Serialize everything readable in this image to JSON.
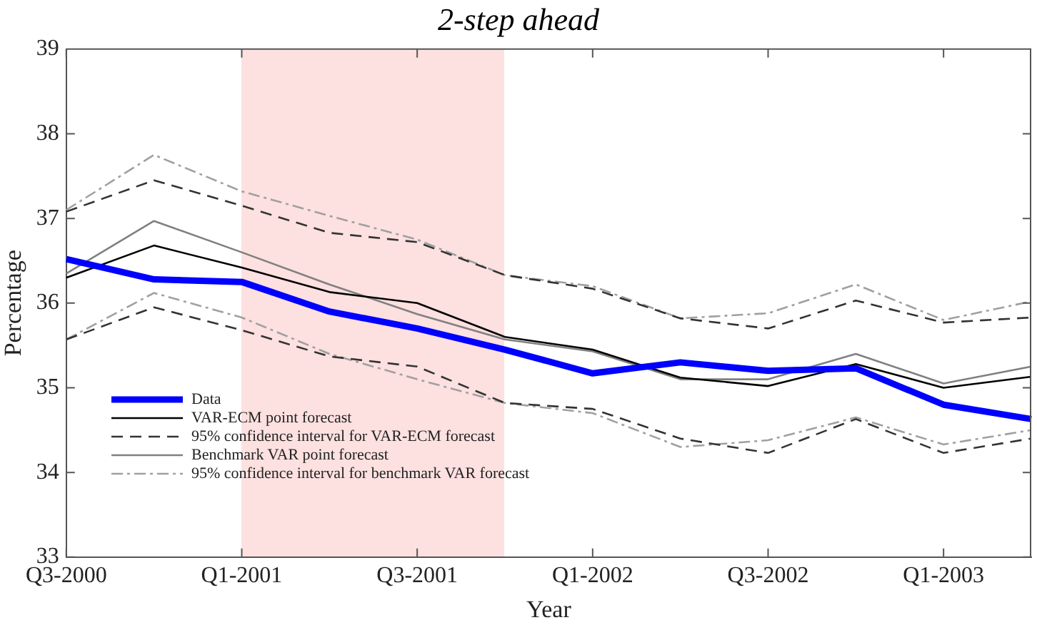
{
  "chart_data": {
    "type": "line",
    "title": "2-step ahead",
    "xlabel": "Year",
    "ylabel": "Percentage",
    "categories": [
      "Q3-2000",
      null,
      "Q1-2001",
      null,
      "Q3-2001",
      null,
      "Q1-2002",
      null,
      "Q3-2002",
      null,
      "Q1-2003",
      null
    ],
    "ylim": [
      33,
      39
    ],
    "yticks": [
      33,
      34,
      35,
      36,
      37,
      38,
      39
    ],
    "grid": false,
    "legend": "bottom left",
    "series": [
      {
        "name": "Data",
        "color": "#0000ff",
        "line_style": "solid",
        "values": [
          36.52,
          36.28,
          36.25,
          35.9,
          35.7,
          35.45,
          35.17,
          35.3,
          35.2,
          35.23,
          34.8,
          34.63
        ]
      },
      {
        "name": "VAR-ECM point forecast",
        "color": "#000000",
        "line_style": "solid",
        "values": [
          36.3,
          36.68,
          36.42,
          36.13,
          36.0,
          35.6,
          35.45,
          35.12,
          35.02,
          35.28,
          35.0,
          35.13
        ]
      },
      {
        "name": "95% confidence interval for VAR-ECM forecast",
        "color": "#333333",
        "line_style": "dashed",
        "values": [
          37.08,
          37.45,
          37.15,
          36.83,
          36.72,
          36.33,
          36.17,
          35.82,
          35.7,
          36.03,
          35.77,
          35.83
        ]
      },
      {
        "color": "#333333",
        "line_style": "dashed",
        "values": [
          35.57,
          35.95,
          35.68,
          35.37,
          35.25,
          34.82,
          34.75,
          34.4,
          34.23,
          34.63,
          34.23,
          34.4
        ]
      },
      {
        "name": "Benchmark VAR point forecast",
        "color": "#808080",
        "line_style": "solid",
        "values": [
          36.35,
          36.97,
          36.6,
          36.22,
          35.87,
          35.57,
          35.43,
          35.1,
          35.1,
          35.4,
          35.05,
          35.25
        ]
      },
      {
        "name": "95% confidence interval for benchmark VAR forecast",
        "color": "#a0a0a0",
        "line_style": "dashdot",
        "values": [
          37.1,
          37.75,
          37.32,
          37.03,
          36.75,
          36.33,
          36.2,
          35.82,
          35.88,
          36.22,
          35.8,
          36.02
        ]
      },
      {
        "color": "#a0a0a0",
        "line_style": "dashdot",
        "values": [
          35.57,
          36.12,
          35.83,
          35.4,
          35.1,
          34.82,
          34.7,
          34.3,
          34.38,
          34.65,
          34.33,
          34.5
        ]
      }
    ]
  }
}
